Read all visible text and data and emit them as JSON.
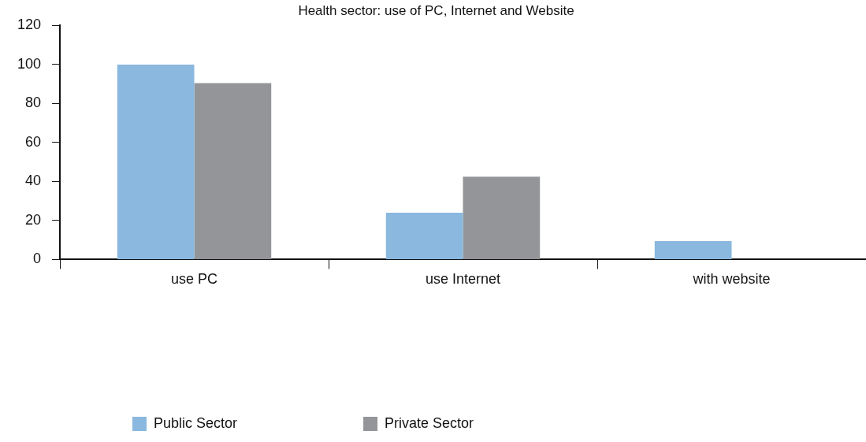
{
  "chart_data": {
    "type": "bar",
    "title": "Health sector: use of PC, Internet and Website",
    "categories": [
      "use PC",
      "use Internet",
      "with website"
    ],
    "series": [
      {
        "name": "Public Sector",
        "color": "#8ab8de",
        "values": [
          100,
          24,
          9.5
        ]
      },
      {
        "name": "Private Sector",
        "color": "#939598",
        "values": [
          90.5,
          42.5,
          0
        ]
      }
    ],
    "ylim": [
      0,
      120
    ],
    "yticks": [
      0,
      20,
      40,
      60,
      80,
      100,
      120
    ],
    "grid": false,
    "legend": "bottom left"
  }
}
